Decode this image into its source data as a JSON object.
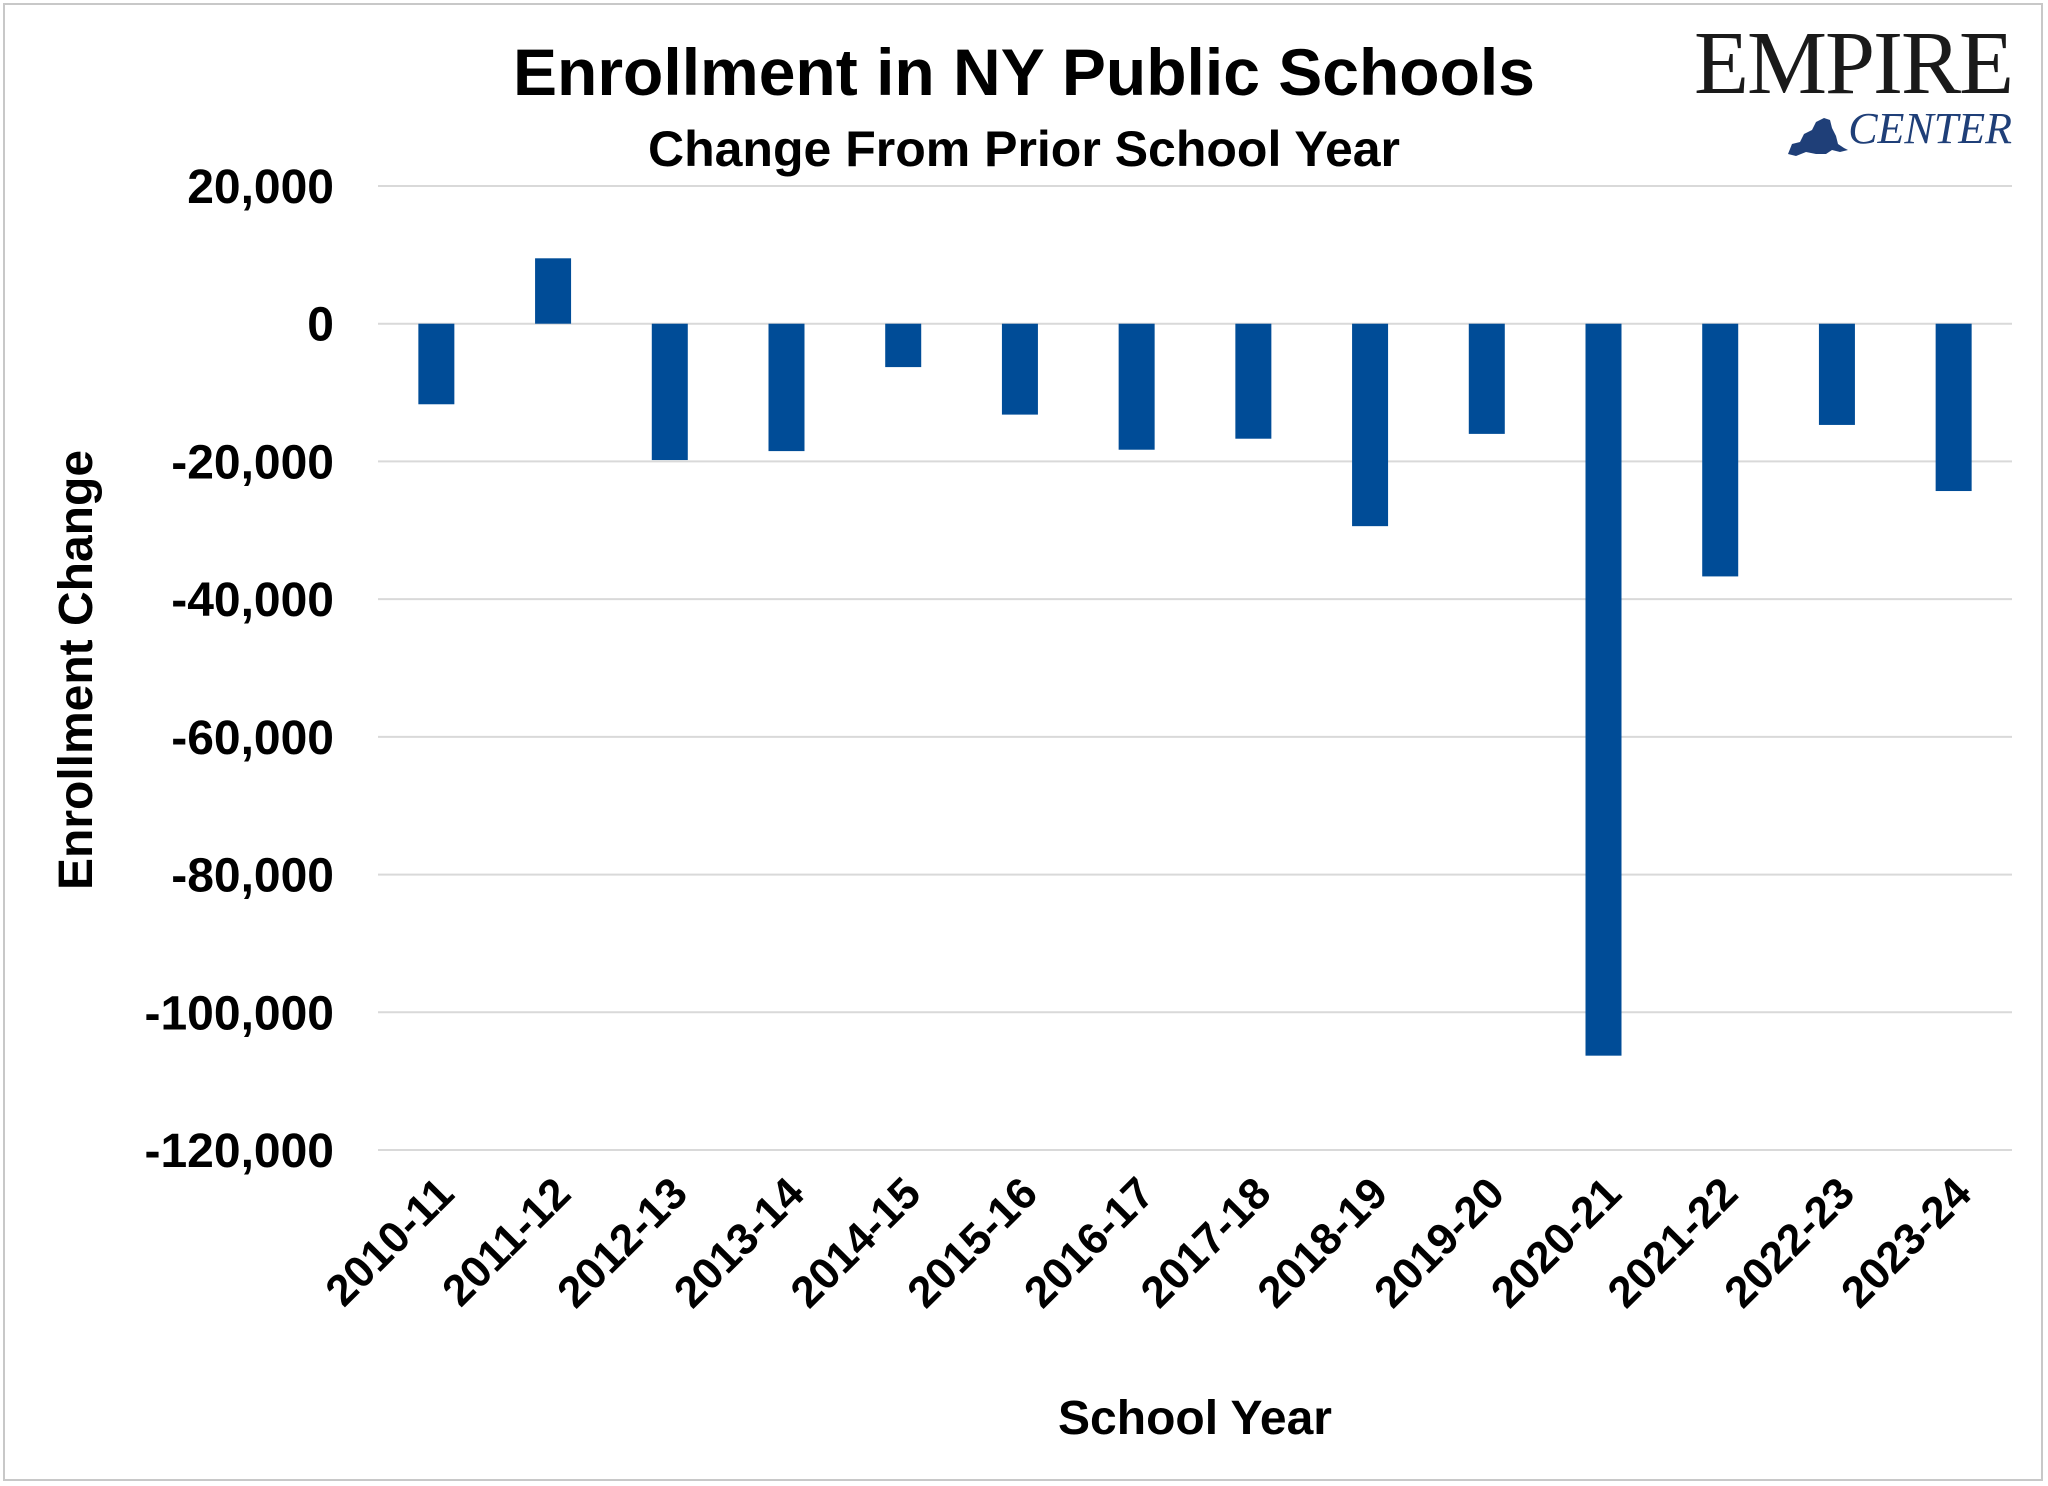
{
  "header": {
    "title": "Enrollment in NY Public Schools",
    "subtitle": "Change From Prior School Year"
  },
  "logo": {
    "word": "EMPIRE",
    "sub": "CENTER",
    "icon": "new-york-state-map-icon",
    "colors": {
      "word": "#1a1a1a",
      "sub": "#1f3f78"
    }
  },
  "chart_data": {
    "type": "bar",
    "title": "Enrollment in NY Public Schools",
    "subtitle": "Change From Prior School Year",
    "xlabel": "School Year",
    "ylabel": "Enrollment Change",
    "categories": [
      "2010-11",
      "2011-12",
      "2012-13",
      "2013-14",
      "2014-15",
      "2015-16",
      "2016-17",
      "2017-18",
      "2018-19",
      "2019-20",
      "2020-21",
      "2021-22",
      "2022-23",
      "2023-24"
    ],
    "values": [
      -11700,
      9500,
      -19800,
      -18500,
      -6300,
      -13200,
      -18300,
      -16700,
      -29400,
      -16000,
      -106300,
      -36700,
      -14700,
      -24300
    ],
    "ylim": [
      -120000,
      20000
    ],
    "yticks": [
      20000,
      0,
      -20000,
      -40000,
      -60000,
      -80000,
      -100000,
      -120000
    ],
    "ytick_labels": [
      "20,000",
      "0",
      "-20,000",
      "-40,000",
      "-60,000",
      "-80,000",
      "-100,000",
      "-120,000"
    ],
    "bar_color": "#004c97",
    "grid": true,
    "legend": "none"
  }
}
